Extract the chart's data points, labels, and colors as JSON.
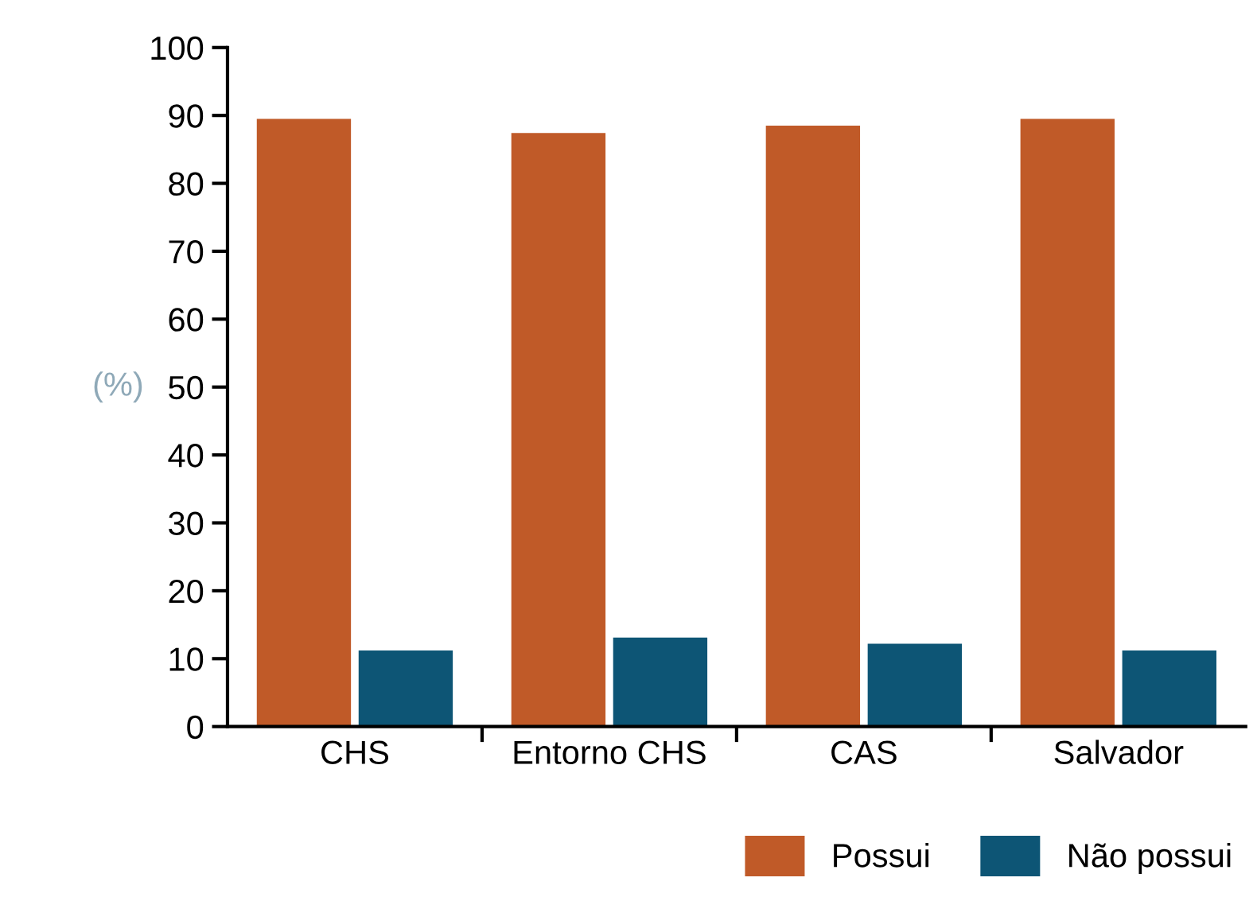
{
  "chart_data": {
    "type": "bar",
    "ylabel": "(%)",
    "categories": [
      "CHS",
      "Entorno CHS",
      "CAS",
      "Salvador"
    ],
    "series": [
      {
        "name": "Possui",
        "color": "#c05a28",
        "values": [
          89.5,
          87.4,
          88.5,
          89.5
        ]
      },
      {
        "name": "Não possui",
        "color": "#0d5575",
        "values": [
          11.2,
          13.1,
          12.2,
          11.2
        ]
      }
    ],
    "ylim": [
      0,
      100
    ],
    "yticks": [
      0,
      10,
      20,
      30,
      40,
      50,
      60,
      70,
      80,
      90,
      100
    ],
    "grid": false,
    "legend": "bottom right"
  }
}
